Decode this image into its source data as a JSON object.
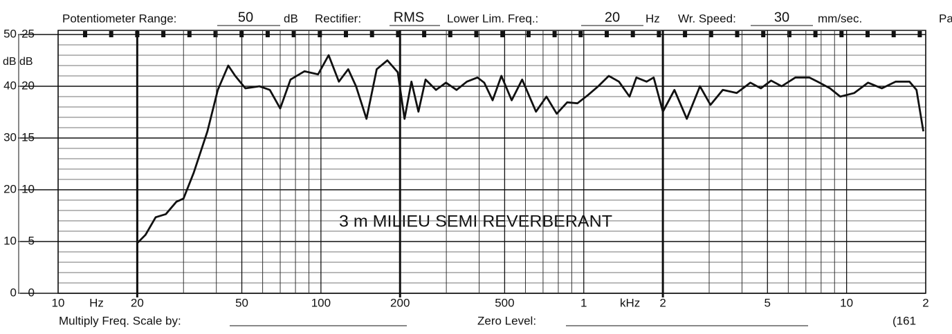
{
  "chart_data": {
    "type": "line",
    "header": {
      "potentiometer_label": "Potentiometer Range:",
      "potentiometer_value": "50",
      "potentiometer_unit": "dB",
      "rectifier_label": "Rectifier:",
      "rectifier_value": "RMS",
      "lower_freq_label": "Lower Lim. Freq.:",
      "lower_freq_value": "20",
      "lower_freq_unit": "Hz",
      "speed_label": "Wr. Speed:",
      "speed_value": "30",
      "speed_unit": "mm/sec.",
      "cut_text": "Pa"
    },
    "footer": {
      "multiply_label": "Multiply Freq. Scale by:",
      "zero_label": "Zero Level:",
      "cut_text": "(161"
    },
    "annotation": "3 m    MILIEU  SEMI  REVERBERANT",
    "ylabel": "dB",
    "y2label": "dB",
    "x_unit_labels": [
      "Hz",
      "kHz"
    ],
    "log_x": true,
    "xlim": [
      10,
      20000
    ],
    "xticks": [
      10,
      20,
      50,
      100,
      200,
      500,
      {
        "value": 1000,
        "label": "1"
      },
      {
        "value": 2000,
        "label": "2"
      },
      {
        "value": 5000,
        "label": "5"
      },
      {
        "value": 10000,
        "label": "10"
      },
      {
        "value": 20000,
        "label": "2"
      }
    ],
    "xgrid": [
      30,
      40,
      60,
      70,
      80,
      90,
      300,
      400,
      600,
      700,
      800,
      900,
      3000,
      4000,
      6000,
      7000,
      8000,
      9000
    ],
    "xgrid_major": [
      20,
      200,
      2000
    ],
    "ylim": [
      0,
      50
    ],
    "yticks": [
      0,
      10,
      20,
      30,
      40,
      50
    ],
    "ygrid": [
      2,
      4,
      6,
      8,
      12,
      14,
      16,
      18,
      22,
      24,
      26,
      28,
      32,
      34,
      36,
      38,
      42,
      44,
      46,
      48
    ],
    "y2lim": [
      0,
      25
    ],
    "y2ticks": [
      0,
      5,
      10,
      15,
      20,
      25
    ],
    "series": [
      {
        "name": "Response",
        "color": "#111111",
        "x": [
          20,
          20,
          20,
          21.5,
          23.5,
          25.7,
          28.2,
          30,
          32.8,
          37,
          40.5,
          44.4,
          47.2,
          51.6,
          58.3,
          63.9,
          70,
          76.6,
          86.5,
          97.5,
          107,
          117,
          127,
          136,
          149,
          163,
          179,
          196,
          208,
          221,
          235,
          250,
          274,
          299,
          328,
          359,
          394,
          418,
          450,
          486,
          532,
          583,
          658,
          721,
          789,
          865,
          946,
          1037,
          1135,
          1245,
          1361,
          1493,
          1585,
          1734,
          1845,
          2000,
          2213,
          2467,
          2767,
          3034,
          3381,
          3819,
          4306,
          4721,
          5165,
          5662,
          6383,
          7211,
          7889,
          8650,
          9462,
          10690,
          12070,
          13620,
          15380,
          17340,
          18450,
          19590
        ],
        "values": [
          23,
          0,
          9.7,
          11.3,
          14.7,
          15.3,
          17.7,
          18.3,
          23.3,
          31.3,
          39.3,
          44,
          42,
          39.6,
          40,
          39.3,
          35.7,
          41.3,
          42.9,
          42.3,
          46,
          40.9,
          43.3,
          40,
          33.7,
          43.3,
          45,
          42.7,
          33.7,
          40.9,
          35.1,
          41.3,
          39.3,
          40.7,
          39.3,
          40.9,
          41.7,
          40.7,
          37.3,
          42,
          37.3,
          41.3,
          35.1,
          38,
          34.7,
          36.9,
          36.7,
          38.3,
          40,
          42,
          40.9,
          38,
          41.7,
          40.9,
          41.7,
          35.1,
          39.3,
          33.7,
          40,
          36.4,
          39.3,
          38.7,
          40.7,
          39.6,
          41.1,
          40,
          41.7,
          41.7,
          40.7,
          39.6,
          38,
          38.7,
          40.7,
          39.6,
          40.9,
          40.9,
          39.3,
          31.3
        ]
      }
    ]
  }
}
